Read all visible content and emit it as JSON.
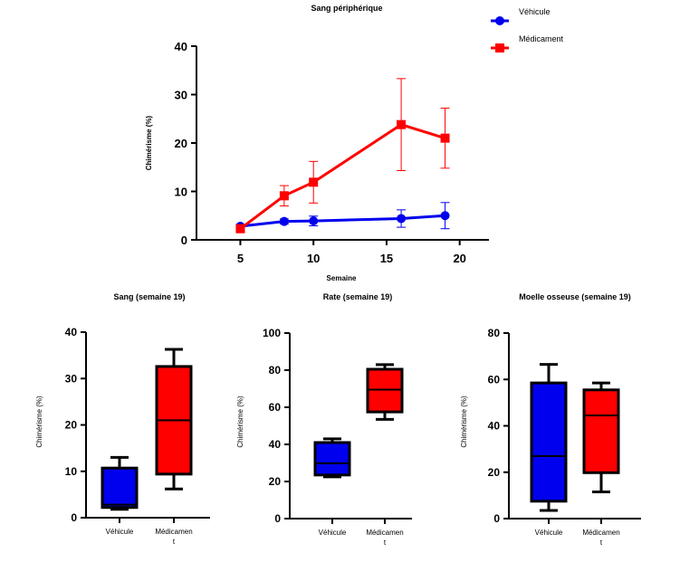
{
  "chart_data": [
    {
      "type": "line",
      "title": "Sang périphérique",
      "xlabel": "Semaine",
      "ylabel": "Chimérisme (%)",
      "xlim": [
        2,
        22
      ],
      "ylim": [
        0,
        40
      ],
      "xticks": [
        "5",
        "10",
        "15",
        "20"
      ],
      "yticks": [
        "0",
        "10",
        "20",
        "30",
        "40"
      ],
      "legend": "top-right",
      "series": [
        {
          "name": "Véhicule",
          "color": "#0000ee",
          "marker": "circle",
          "x": [
            5,
            8,
            10,
            16,
            19
          ],
          "y": [
            2.8,
            3.8,
            3.9,
            4.4,
            5.0
          ],
          "err": [
            0.4,
            0.5,
            1.0,
            1.8,
            2.7
          ]
        },
        {
          "name": "Médicament",
          "color": "#ff0000",
          "marker": "square",
          "x": [
            5,
            8,
            10,
            16,
            19
          ],
          "y": [
            2.3,
            9.1,
            11.9,
            23.8,
            21.0
          ],
          "err": [
            0.4,
            2.1,
            4.3,
            9.5,
            6.2
          ]
        }
      ]
    },
    {
      "type": "box",
      "title": "Sang (semaine 19)",
      "ylabel": "Chimérisme (%)",
      "ylim": [
        0,
        40
      ],
      "yticks": [
        "0",
        "10",
        "20",
        "30",
        "40"
      ],
      "categories": [
        "Véhicule",
        "Médicament"
      ],
      "boxes": [
        {
          "color": "#0000ee",
          "min": 1.8,
          "q1": 2.2,
          "median": 2.8,
          "q3": 10.7,
          "max": 13.0
        },
        {
          "color": "#ff0000",
          "min": 6.2,
          "q1": 9.4,
          "median": 21.0,
          "q3": 32.6,
          "max": 36.3
        }
      ]
    },
    {
      "type": "box",
      "title": "Rate (semaine 19)",
      "ylabel": "Chimérisme (%)",
      "ylim": [
        0,
        100
      ],
      "yticks": [
        "0",
        "20",
        "40",
        "60",
        "80",
        "100"
      ],
      "categories": [
        "Véhicule",
        "Médicament"
      ],
      "boxes": [
        {
          "color": "#0000ee",
          "min": 22.5,
          "q1": 23.5,
          "median": 29.8,
          "q3": 41.0,
          "max": 43.0
        },
        {
          "color": "#ff0000",
          "min": 53.5,
          "q1": 57.5,
          "median": 69.5,
          "q3": 80.5,
          "max": 83.0
        }
      ]
    },
    {
      "type": "box",
      "title": "Moelle osseuse (semaine 19)",
      "ylabel": "Chimérisme (%)",
      "ylim": [
        0,
        80
      ],
      "yticks": [
        "0",
        "20",
        "40",
        "60",
        "80"
      ],
      "categories": [
        "Véhicule",
        "Médicament"
      ],
      "boxes": [
        {
          "color": "#0000ee",
          "min": 3.5,
          "q1": 7.5,
          "median": 27.0,
          "q3": 58.5,
          "max": 66.5
        },
        {
          "color": "#ff0000",
          "min": 11.5,
          "q1": 19.8,
          "median": 44.5,
          "q3": 55.5,
          "max": 58.5
        }
      ]
    }
  ]
}
